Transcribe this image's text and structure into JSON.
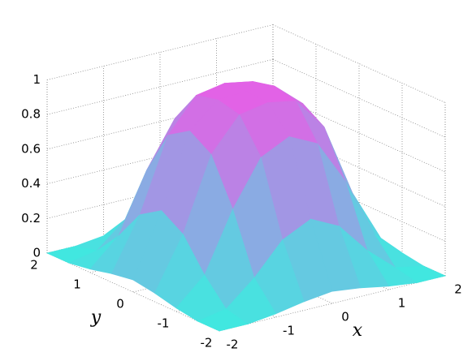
{
  "chart_data": {
    "type": "surface",
    "x": [
      -2,
      -1.5,
      -1,
      -0.5,
      0,
      0.5,
      1,
      1.5,
      2
    ],
    "y": [
      -2,
      -1.5,
      -1,
      -0.5,
      0,
      0.5,
      1,
      1.5,
      2
    ],
    "z": [
      [
        0,
        0,
        0.02,
        0.05,
        0.07,
        0.05,
        0.02,
        0,
        0
      ],
      [
        0,
        0.03,
        0.17,
        0.35,
        0.43,
        0.35,
        0.17,
        0.03,
        0
      ],
      [
        0.02,
        0.17,
        0.51,
        0.77,
        0.85,
        0.77,
        0.51,
        0.17,
        0.02
      ],
      [
        0.05,
        0.35,
        0.77,
        0.96,
        0.99,
        0.96,
        0.77,
        0.35,
        0.05
      ],
      [
        0.07,
        0.43,
        0.85,
        0.99,
        1,
        0.99,
        0.85,
        0.43,
        0.07
      ],
      [
        0.05,
        0.35,
        0.77,
        0.96,
        0.99,
        0.96,
        0.77,
        0.35,
        0.05
      ],
      [
        0.02,
        0.17,
        0.51,
        0.77,
        0.85,
        0.77,
        0.51,
        0.17,
        0.02
      ],
      [
        0,
        0.03,
        0.17,
        0.35,
        0.43,
        0.35,
        0.17,
        0.03,
        0
      ],
      [
        0,
        0,
        0.02,
        0.05,
        0.07,
        0.05,
        0.02,
        0,
        0
      ]
    ],
    "xlabel": "x",
    "ylabel": "y",
    "xlim": [
      -2,
      2
    ],
    "ylim": [
      -2,
      2
    ],
    "zlim": [
      0,
      1
    ],
    "xticks": [
      -2,
      -1,
      0,
      1,
      2
    ],
    "yticks": [
      -2,
      -1,
      0,
      1,
      2
    ],
    "zticks": [
      0,
      0.2,
      0.4,
      0.6,
      0.8,
      1
    ],
    "colormap": [
      "#40e8e0",
      "#e460e6"
    ],
    "grid": true
  }
}
